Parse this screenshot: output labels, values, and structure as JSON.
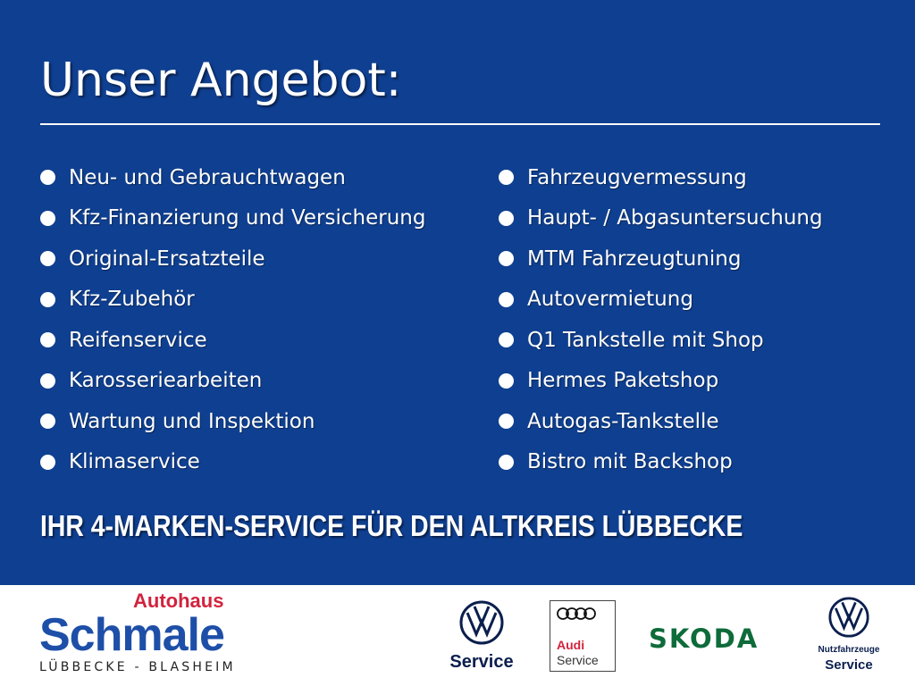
{
  "title": "Unser Angebot:",
  "left_items": [
    "Neu- und Gebrauchtwagen",
    "Kfz-Finanzierung und Versicherung",
    "Original-Ersatzteile",
    "Kfz-Zubehör",
    "Reifenservice",
    "Karosseriearbeiten",
    "Wartung und Inspektion",
    "Klimaservice"
  ],
  "right_items": [
    "Fahrzeugvermessung",
    "Haupt- / Abgasuntersuchung",
    "MTM Fahrzeugtuning",
    "Autovermietung",
    "Q1 Tankstelle mit Shop",
    "Hermes Paketshop",
    "Autogas-Tankstelle",
    "Bistro mit Backshop"
  ],
  "tagline": "IHR 4-MARKEN-SERVICE FÜR DEN ALTKREIS LÜBBECKE",
  "logos": {
    "schmale": {
      "top": "Autohaus",
      "main": "Schmale",
      "sub": "LÜBBECKE - BLASHEIM"
    },
    "vw": {
      "label": "Service"
    },
    "audi": {
      "brand": "Audi",
      "label": "Service"
    },
    "skoda": {
      "label": "SKODA"
    },
    "vwn": {
      "top": "Nutzfahrzeuge",
      "label": "Service"
    }
  },
  "colors": {
    "background": "#0f3f90",
    "text": "#ffffff",
    "audi_red": "#d2233e",
    "skoda_green": "#0e6b3a",
    "vw_blue": "#0b1f4e"
  }
}
